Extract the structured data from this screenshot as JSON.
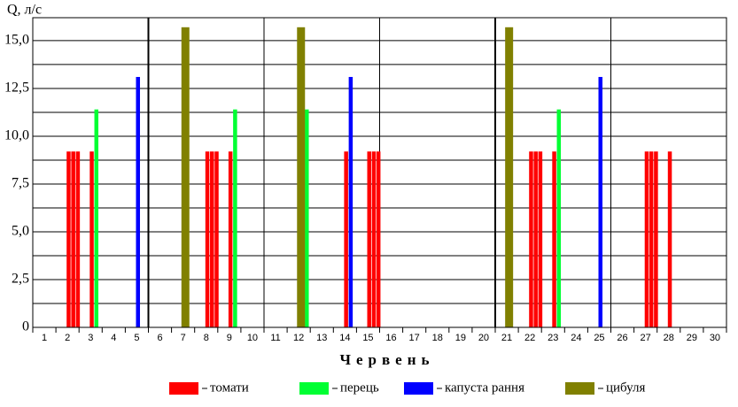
{
  "chart_data": {
    "type": "bar",
    "y_label": "Q, л/с",
    "x_label": "Червень",
    "xlim": [
      0.5,
      30.5
    ],
    "xticks": [
      1,
      2,
      3,
      4,
      5,
      6,
      7,
      8,
      9,
      10,
      11,
      12,
      13,
      14,
      15,
      16,
      17,
      18,
      19,
      20,
      21,
      22,
      23,
      24,
      25,
      26,
      27,
      28,
      29,
      30
    ],
    "ylim": [
      0,
      16.2
    ],
    "yticks": [
      0,
      {
        "value": 2.5,
        "label": "2,5"
      },
      {
        "value": 5,
        "label": "5,0"
      },
      {
        "value": 7.5,
        "label": "7,5"
      },
      {
        "value": 10,
        "label": "10,0"
      },
      {
        "value": 12.5,
        "label": "12,5"
      },
      {
        "value": 15,
        "label": "15,0"
      }
    ],
    "minor_yticks": [
      1.25,
      3.75,
      6.25,
      8.75,
      11.25,
      13.75
    ],
    "grid": true,
    "series": [
      {
        "name": "томати",
        "color": "#ff0000",
        "x": [
          2.05,
          2.25,
          2.45,
          3.05,
          8.05,
          8.25,
          8.45,
          9.05,
          14.05,
          15.05,
          15.25,
          15.45,
          22.05,
          22.25,
          22.45,
          23.05,
          27.05,
          27.25,
          27.45,
          28.05
        ],
        "values": [
          9.2,
          9.2,
          9.2,
          9.2,
          9.2,
          9.2,
          9.2,
          9.2,
          9.2,
          9.2,
          9.2,
          9.2,
          9.2,
          9.2,
          9.2,
          9.2,
          9.2,
          9.2,
          9.2,
          9.2
        ]
      },
      {
        "name": "перець",
        "color": "#00ff33",
        "x": [
          3.25,
          9.25,
          12.35,
          23.25
        ],
        "values": [
          11.4,
          11.4,
          11.4,
          11.4
        ]
      },
      {
        "name": "капуста рання",
        "color": "#0000ff",
        "x": [
          5.05,
          14.25,
          25.05
        ],
        "values": [
          13.1,
          13.1,
          13.1
        ]
      },
      {
        "name": "цибуля",
        "color": "#808000",
        "x": [
          7.1,
          12.1,
          21.1
        ],
        "values": [
          15.7,
          15.7,
          15.7
        ]
      }
    ]
  }
}
